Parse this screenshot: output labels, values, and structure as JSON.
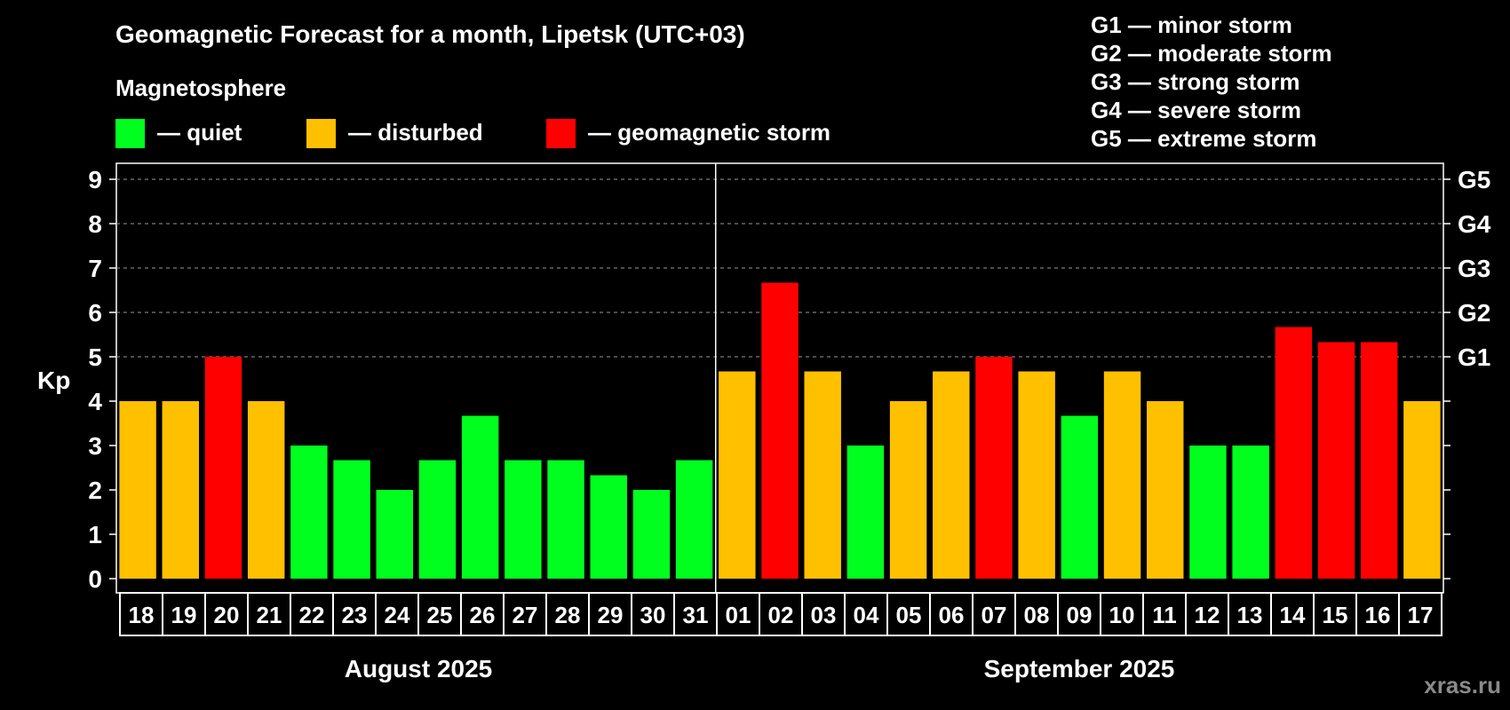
{
  "chart_data": {
    "type": "bar",
    "title": "Geomagnetic Forecast for a month, Lipetsk (UTC+03)",
    "legend_title": "Magnetosphere",
    "legend": [
      {
        "label": "— quiet",
        "color": "#00ff1e",
        "status": "quiet"
      },
      {
        "label": "— disturbed",
        "color": "#ffc000",
        "status": "disturbed"
      },
      {
        "label": "— geomagnetic storm",
        "color": "#ff0000",
        "status": "storm"
      }
    ],
    "storm_scale": [
      "G1 — minor storm",
      "G2 — moderate storm",
      "G3 — strong storm",
      "G4 — severe storm",
      "G5 — extreme storm"
    ],
    "ylabel": "Kp",
    "ylim": [
      0,
      9
    ],
    "yticks": [
      "0",
      "1",
      "2",
      "3",
      "4",
      "5",
      "6",
      "7",
      "8",
      "9"
    ],
    "right_ticks": [
      {
        "value": 5,
        "label": "G1"
      },
      {
        "value": 6,
        "label": "G2"
      },
      {
        "value": 7,
        "label": "G3"
      },
      {
        "value": 8,
        "label": "G4"
      },
      {
        "value": 9,
        "label": "G5"
      }
    ],
    "grid": "dashed horizontal lines at Kp 5–9",
    "months": [
      "August 2025",
      "September 2025"
    ],
    "month_split_index": 14,
    "categories": [
      "18",
      "19",
      "20",
      "21",
      "22",
      "23",
      "24",
      "25",
      "26",
      "27",
      "28",
      "29",
      "30",
      "31",
      "01",
      "02",
      "03",
      "04",
      "05",
      "06",
      "07",
      "08",
      "09",
      "10",
      "11",
      "12",
      "13",
      "14",
      "15",
      "16",
      "17"
    ],
    "values": [
      4,
      4,
      5,
      4,
      3,
      2.67,
      2,
      2.67,
      3.67,
      2.67,
      2.67,
      2.33,
      2,
      2.67,
      4.67,
      6.67,
      4.67,
      3,
      4,
      4.67,
      5,
      4.67,
      3.67,
      4.67,
      4,
      3,
      3,
      5.67,
      5.33,
      5.33,
      4
    ],
    "status": [
      "disturbed",
      "disturbed",
      "storm",
      "disturbed",
      "quiet",
      "quiet",
      "quiet",
      "quiet",
      "quiet",
      "quiet",
      "quiet",
      "quiet",
      "quiet",
      "quiet",
      "disturbed",
      "storm",
      "disturbed",
      "quiet",
      "disturbed",
      "disturbed",
      "storm",
      "disturbed",
      "quiet",
      "disturbed",
      "disturbed",
      "quiet",
      "quiet",
      "storm",
      "storm",
      "storm",
      "disturbed"
    ]
  },
  "watermark": "xras.ru"
}
